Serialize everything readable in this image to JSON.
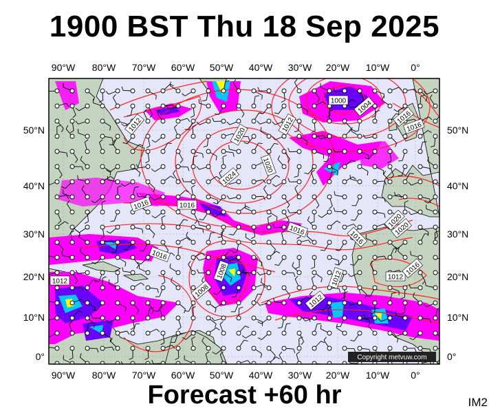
{
  "title": "1900 BST Thu 18 Sep 2025",
  "footer": "Forecast +60 hr",
  "image_code": "IM2",
  "copyright": "Copyright metvuw.com",
  "axes": {
    "lon_labels": [
      "90°W",
      "80°W",
      "70°W",
      "60°W",
      "50°W",
      "40°W",
      "30°W",
      "20°W",
      "10°W",
      "0°"
    ],
    "lat_labels": [
      "50°N",
      "40°N",
      "30°N",
      "20°N",
      "10°N",
      "0°"
    ]
  },
  "isobar_labels": [
    {
      "text": "1000"
    },
    {
      "text": "1004"
    },
    {
      "text": "1016"
    },
    {
      "text": "1012"
    },
    {
      "text": "1012"
    },
    {
      "text": "1020"
    },
    {
      "text": "1024"
    },
    {
      "text": "1020"
    },
    {
      "text": "1016"
    },
    {
      "text": "1016"
    },
    {
      "text": "1016"
    },
    {
      "text": "1016"
    },
    {
      "text": "1016"
    },
    {
      "text": "1020"
    },
    {
      "text": "1016"
    },
    {
      "text": "1012"
    },
    {
      "text": "1008"
    },
    {
      "text": "1012"
    },
    {
      "text": "1012"
    },
    {
      "text": "1012"
    },
    {
      "text": "1008"
    },
    {
      "text": "1016"
    },
    {
      "text": "1020"
    }
  ],
  "colors": {
    "ocean": "#e6e6fa",
    "land": "#c4d4c0",
    "isobar": "#ff2020",
    "precip_light": "#ff00ff",
    "precip_mid": "#6a00ff",
    "precip_heavy": "#00c8ff",
    "precip_core": "#ffff00"
  }
}
